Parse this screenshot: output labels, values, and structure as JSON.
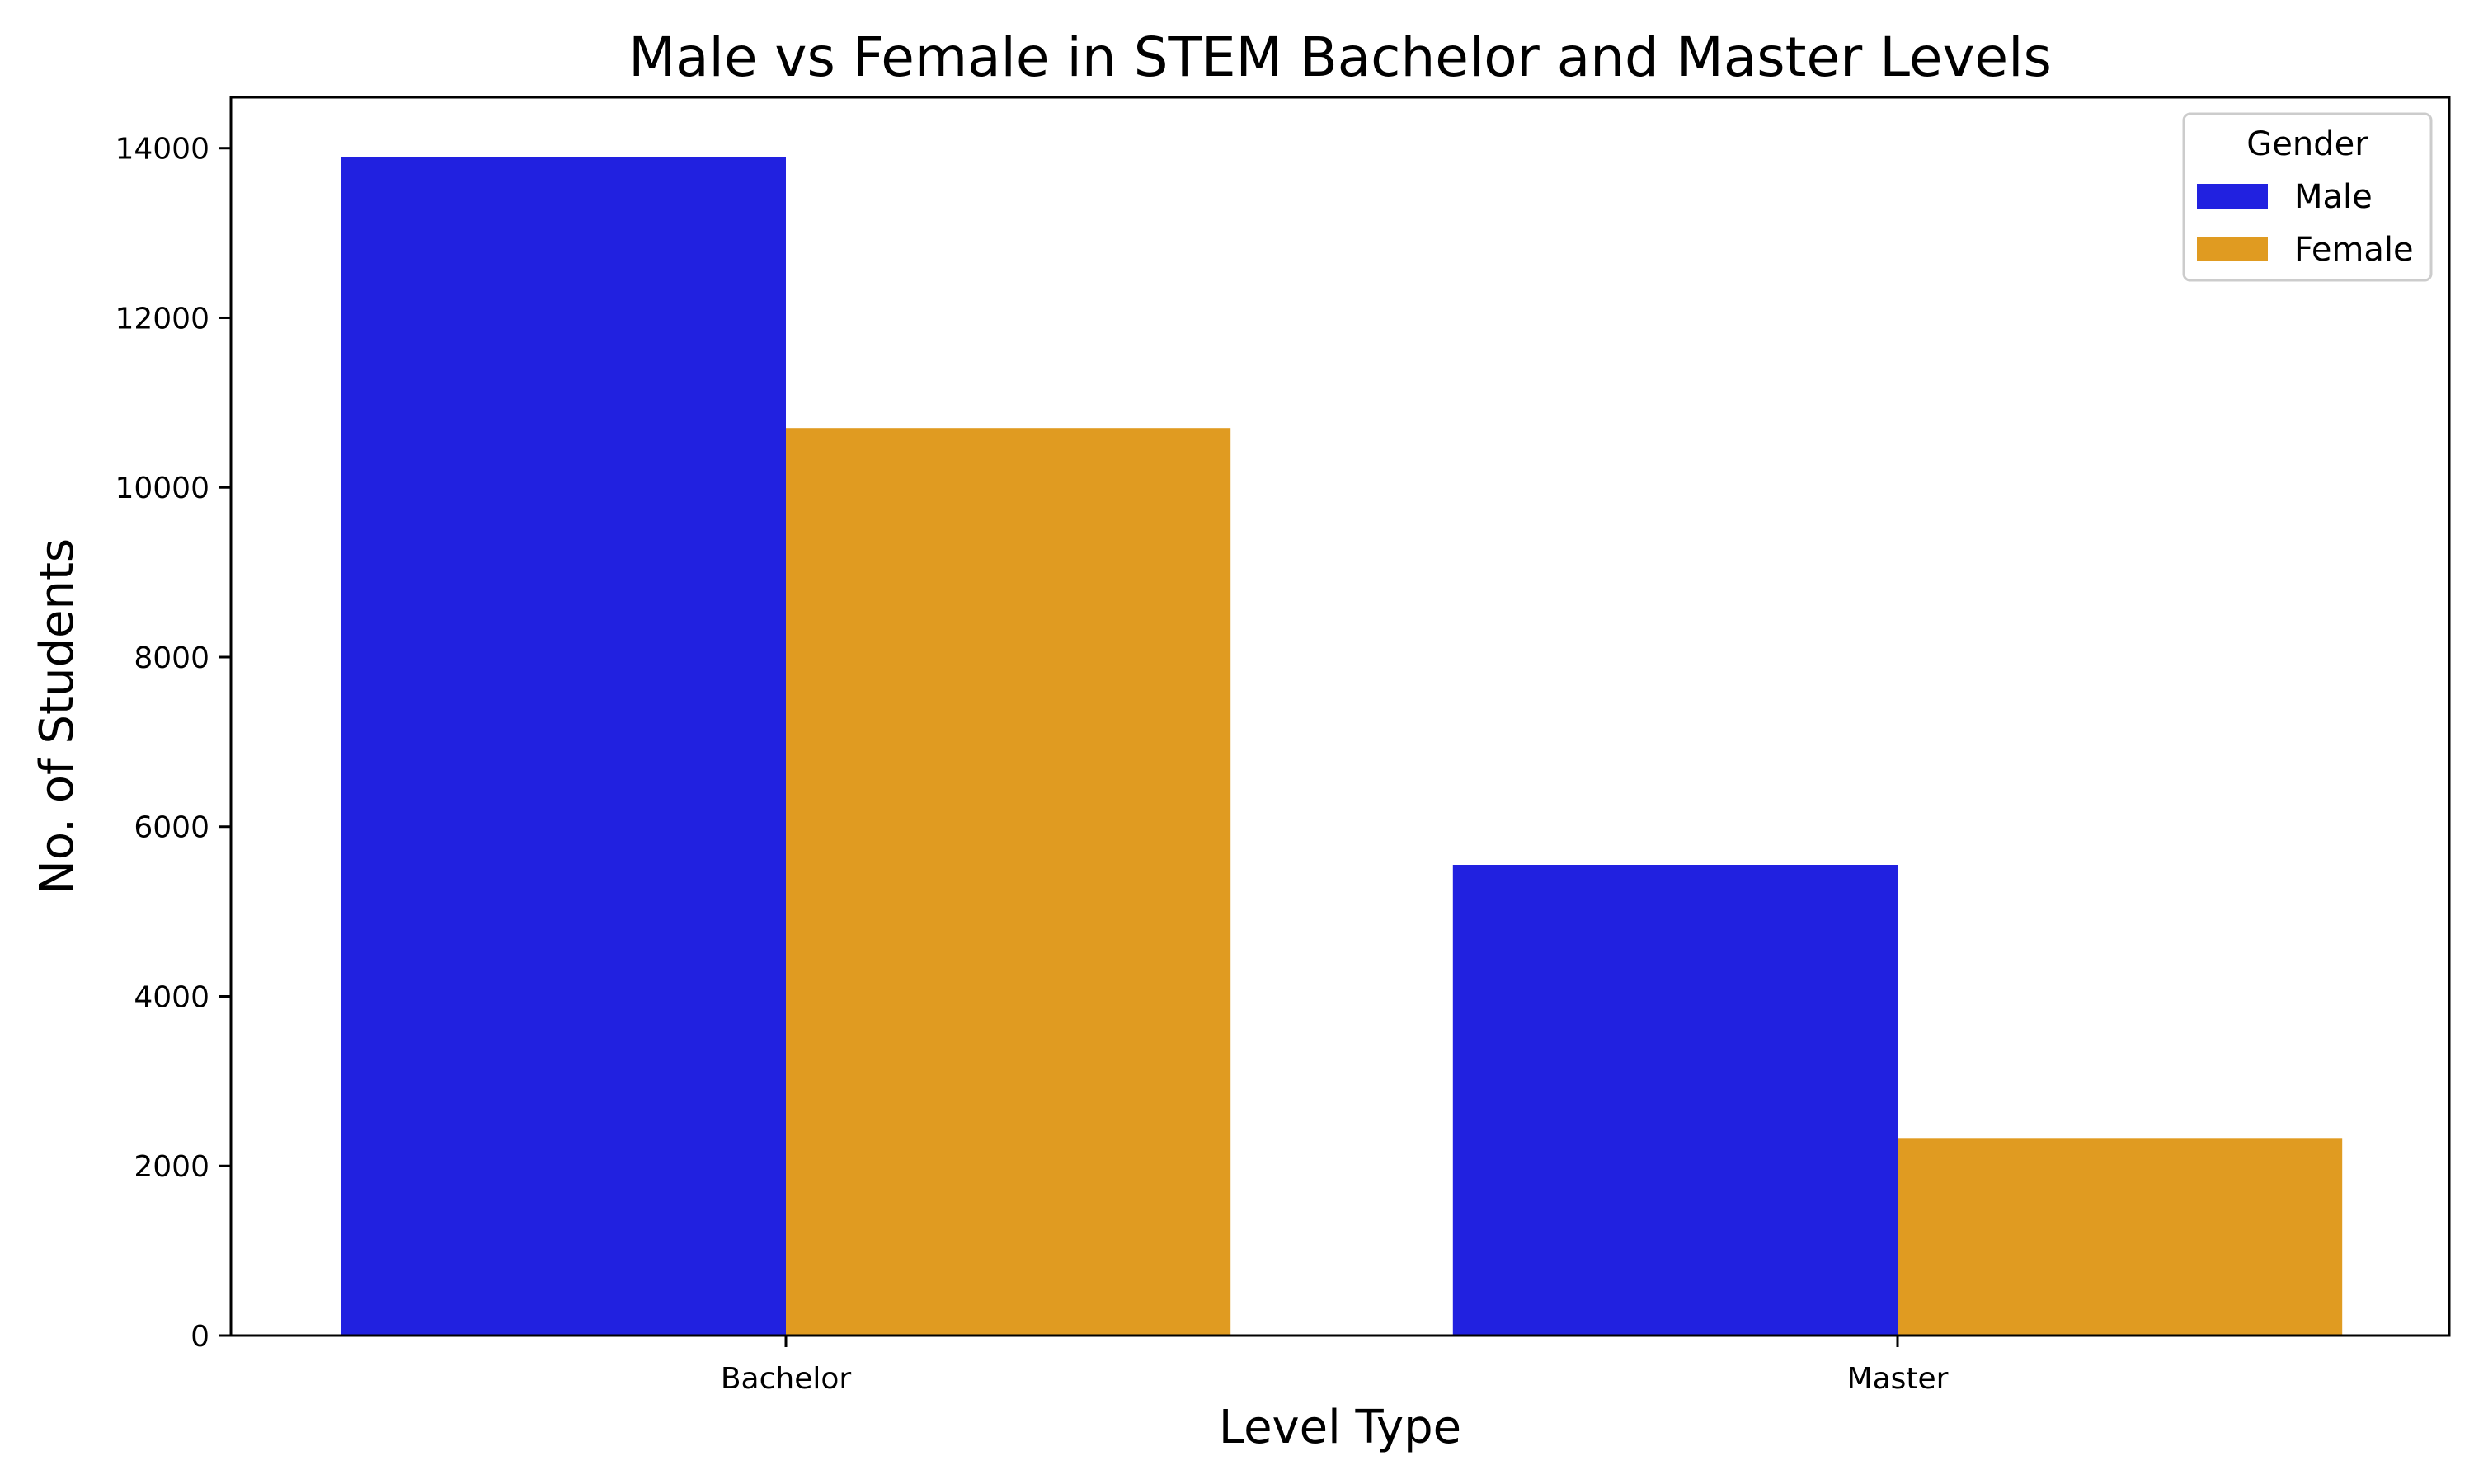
{
  "chart_data": {
    "type": "bar",
    "title": "Male vs Female in STEM Bachelor and Master Levels",
    "xlabel": "Level Type",
    "ylabel": "No. of Students",
    "categories": [
      "Bachelor",
      "Master"
    ],
    "series": [
      {
        "name": "Male",
        "values": [
          13900,
          5550
        ],
        "color": "#2121e0"
      },
      {
        "name": "Female",
        "values": [
          10700,
          2330
        ],
        "color": "#e09b21"
      }
    ],
    "ylim": [
      0,
      14600
    ],
    "yticks": [
      0,
      2000,
      4000,
      6000,
      8000,
      10000,
      12000,
      14000
    ],
    "ytick_labels": [
      "0",
      "2000",
      "4000",
      "6000",
      "8000",
      "10000",
      "12000",
      "14000"
    ],
    "grid": false,
    "legend": {
      "title": "Gender",
      "placement": "top-right"
    }
  }
}
